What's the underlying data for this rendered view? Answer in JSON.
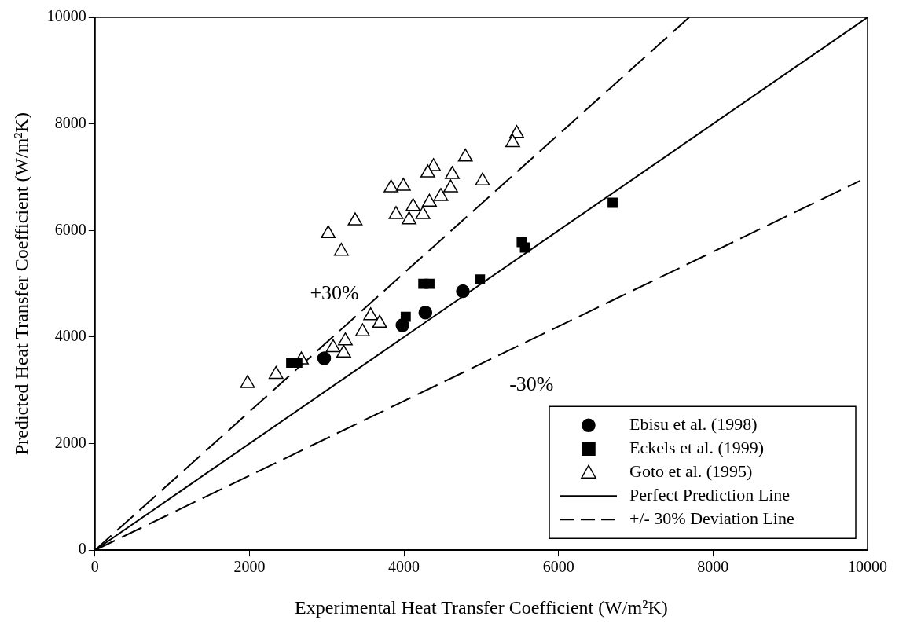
{
  "chart_data": {
    "type": "scatter",
    "xlabel": "Experimental Heat Transfer Coefficient (W/m²K)",
    "ylabel": "Predicted Heat Transfer Coefficient (W/m²K)",
    "xlim": [
      0,
      10000
    ],
    "ylim": [
      0,
      10000
    ],
    "xticks": [
      0,
      2000,
      4000,
      6000,
      8000,
      10000
    ],
    "yticks": [
      0,
      2000,
      4000,
      6000,
      8000,
      10000
    ],
    "grid": false,
    "legend": "bottom right",
    "annotations": [
      "+30%",
      "-30%"
    ],
    "series": [
      {
        "name": "Ebisu et al. (1998)",
        "marker": "circle",
        "color": "#000000",
        "x": [
          2967,
          3981,
          4277,
          4762
        ],
        "values": [
          3600,
          4220,
          4460,
          4860
        ]
      },
      {
        "name": "Eckels et al. (1999)",
        "marker": "square",
        "color": "#000000",
        "x": [
          2540,
          2620,
          4023,
          4250,
          4330,
          4984,
          5523,
          5565,
          6700
        ],
        "values": [
          3520,
          3520,
          4380,
          5000,
          5000,
          5080,
          5780,
          5680,
          6520
        ]
      },
      {
        "name": "Goto et al. (1995)",
        "marker": "triangle",
        "color": "#000000",
        "x": [
          5459,
          5407,
          4794,
          4382,
          4308,
          4625,
          5016,
          4604,
          3833,
          3992,
          4477,
          4329,
          4118,
          3897,
          4066,
          4245,
          3368,
          3020,
          3189,
          1975,
          2344,
          2672,
          3083,
          3220,
          3241,
          3464,
          3569,
          3685
        ],
        "values": [
          7820,
          7650,
          7380,
          7200,
          7080,
          7050,
          6930,
          6800,
          6800,
          6830,
          6640,
          6530,
          6450,
          6300,
          6200,
          6300,
          6180,
          5940,
          5610,
          3130,
          3300,
          3570,
          3800,
          3700,
          3930,
          4100,
          4400,
          4260
        ]
      },
      {
        "name": "Perfect Prediction Line",
        "type": "line",
        "line_style": "solid",
        "color": "#000000",
        "x": [
          0,
          10000
        ],
        "values": [
          0,
          10000
        ]
      },
      {
        "name": "+/- 30% Deviation Line",
        "type": "line",
        "line_style": "dashed",
        "color": "#000000",
        "x": [
          0,
          7692
        ],
        "values": [
          0,
          10000
        ]
      },
      {
        "type": "line",
        "line_style": "dashed",
        "color": "#000000",
        "x": [
          0,
          9900
        ],
        "values": [
          0,
          6930
        ]
      }
    ]
  }
}
